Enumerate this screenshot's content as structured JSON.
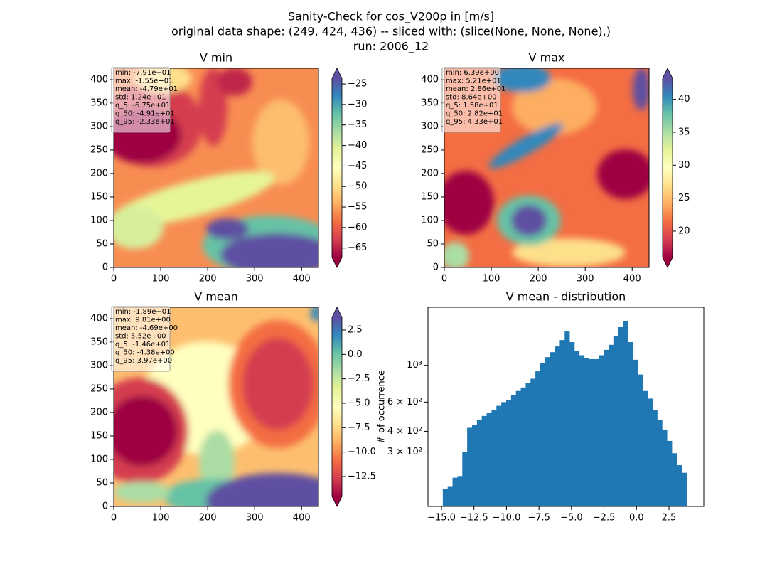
{
  "figure": {
    "title": [
      "Sanity-Check for cos_V200p in [m/s]",
      "original data shape: (249, 424, 436) -- sliced with: (slice(None, None, None),)",
      "run: 2006_12"
    ]
  },
  "chart_data": [
    {
      "type": "heatmap",
      "title": "V min",
      "xlim": [
        0,
        436
      ],
      "ylim": [
        0,
        424
      ],
      "xticks": [
        0,
        100,
        200,
        300,
        400
      ],
      "yticks": [
        0,
        50,
        100,
        150,
        200,
        250,
        300,
        350,
        400
      ],
      "colormap": "Spectral",
      "clim": [
        -67.3,
        -23.6
      ],
      "colorbar_extend": "both",
      "cticks": [
        {
          "value": -25,
          "label": "−25"
        },
        {
          "value": -30,
          "label": "−30"
        },
        {
          "value": -35,
          "label": "−35"
        },
        {
          "value": -40,
          "label": "−40"
        },
        {
          "value": -45,
          "label": "−45"
        },
        {
          "value": -50,
          "label": "−50"
        },
        {
          "value": -55,
          "label": "−55"
        },
        {
          "value": -60,
          "label": "−60"
        },
        {
          "value": -65,
          "label": "−65"
        }
      ],
      "stats": [
        "min: -7.91e+01",
        "max: -1.55e+01",
        "mean: -4.79e+01",
        "std: 1.24e+01",
        "q_5: -6.75e+01",
        "q_50: -4.91e+01",
        "q_95: -2.33e+01"
      ]
    },
    {
      "type": "heatmap",
      "title": "V max",
      "xlim": [
        0,
        436
      ],
      "ylim": [
        0,
        424
      ],
      "xticks": [
        0,
        100,
        200,
        300,
        400
      ],
      "yticks": [
        0,
        50,
        100,
        150,
        200,
        250,
        300,
        350,
        400
      ],
      "colormap": "Spectral",
      "clim": [
        16.0,
        43.2
      ],
      "colorbar_extend": "both",
      "cticks": [
        20,
        25,
        30,
        35,
        40
      ],
      "stats": [
        "min: 6.39e+00",
        "max: 5.21e+01",
        "mean: 2.86e+01",
        "std: 8.64e+00",
        "q_5: 1.58e+01",
        "q_50: 2.82e+01",
        "q_95: 4.33e+01"
      ]
    },
    {
      "type": "heatmap",
      "title": "V mean",
      "xlim": [
        0,
        436
      ],
      "ylim": [
        0,
        424
      ],
      "xticks": [
        0,
        100,
        200,
        300,
        400
      ],
      "yticks": [
        0,
        50,
        100,
        150,
        200,
        250,
        300,
        350,
        400
      ],
      "colormap": "Spectral",
      "clim": [
        -14.54,
        3.81
      ],
      "colorbar_extend": "both",
      "cticks": [
        2.5,
        {
          "value": 0,
          "label": "0.0"
        },
        {
          "value": -2.5,
          "label": "−2.5"
        },
        {
          "value": -5,
          "label": "−5.0"
        },
        {
          "value": -7.5,
          "label": "−7.5"
        },
        {
          "value": -10,
          "label": "−10.0"
        },
        {
          "value": -12.5,
          "label": "−12.5"
        }
      ],
      "stats": [
        "min: -1.89e+01",
        "max: 9.81e+00",
        "mean: -4.69e+00",
        "std: 5.52e+00",
        "q_5: -1.46e+01",
        "q_50: -4.38e+00",
        "q_95: 3.97e+00"
      ]
    },
    {
      "type": "histogram",
      "title": "V mean - distribution",
      "ylabel": "# of occurrence",
      "color": "#1f77b4",
      "yscale": "log",
      "xlim": [
        -16.04,
        5.18
      ],
      "ylim": [
        141,
        2240
      ],
      "xticks": [
        {
          "value": -15,
          "label": "−15.0"
        },
        {
          "value": -12.5,
          "label": "−12.5"
        },
        {
          "value": -10,
          "label": "−10.0"
        },
        {
          "value": -7.5,
          "label": "−7.5"
        },
        {
          "value": -5,
          "label": "−5.0"
        },
        {
          "value": -2.5,
          "label": "−2.5"
        },
        {
          "value": 0,
          "label": "0.0"
        },
        2.5
      ],
      "yticks": [
        {
          "value": 300,
          "label": "3 × 10²"
        },
        {
          "value": 400,
          "label": "4 × 10²"
        },
        {
          "value": 600,
          "label": "6 × 10²"
        },
        {
          "value": 1000,
          "label": "10³"
        }
      ],
      "bins": [
        -14.9,
        -14.525,
        -14.15,
        -13.775,
        -13.4,
        -13.025,
        -12.65,
        -12.275,
        -11.9,
        -11.525,
        -11.15,
        -10.775,
        -10.4,
        -10.025,
        -9.65,
        -9.275,
        -8.9,
        -8.525,
        -8.15,
        -7.775,
        -7.4,
        -7.025,
        -6.65,
        -6.275,
        -5.9,
        -5.525,
        -5.15,
        -4.775,
        -4.4,
        -4.025,
        -3.65,
        -3.275,
        -2.9,
        -2.525,
        -2.15,
        -1.775,
        -1.4,
        -1.025,
        -0.65,
        -0.275,
        0.1,
        0.475,
        0.85,
        1.225,
        1.6,
        1.975,
        2.35,
        2.725,
        3.1,
        3.475,
        3.85
      ],
      "counts": [
        180,
        185,
        210,
        215,
        300,
        420,
        435,
        470,
        495,
        515,
        540,
        570,
        600,
        620,
        660,
        700,
        735,
        780,
        830,
        920,
        1030,
        1120,
        1200,
        1300,
        1420,
        1600,
        1380,
        1220,
        1150,
        1100,
        1090,
        1090,
        1150,
        1240,
        1330,
        1500,
        1700,
        1850,
        1380,
        1080,
        880,
        700,
        630,
        540,
        470,
        410,
        350,
        295,
        250,
        225
      ]
    }
  ]
}
